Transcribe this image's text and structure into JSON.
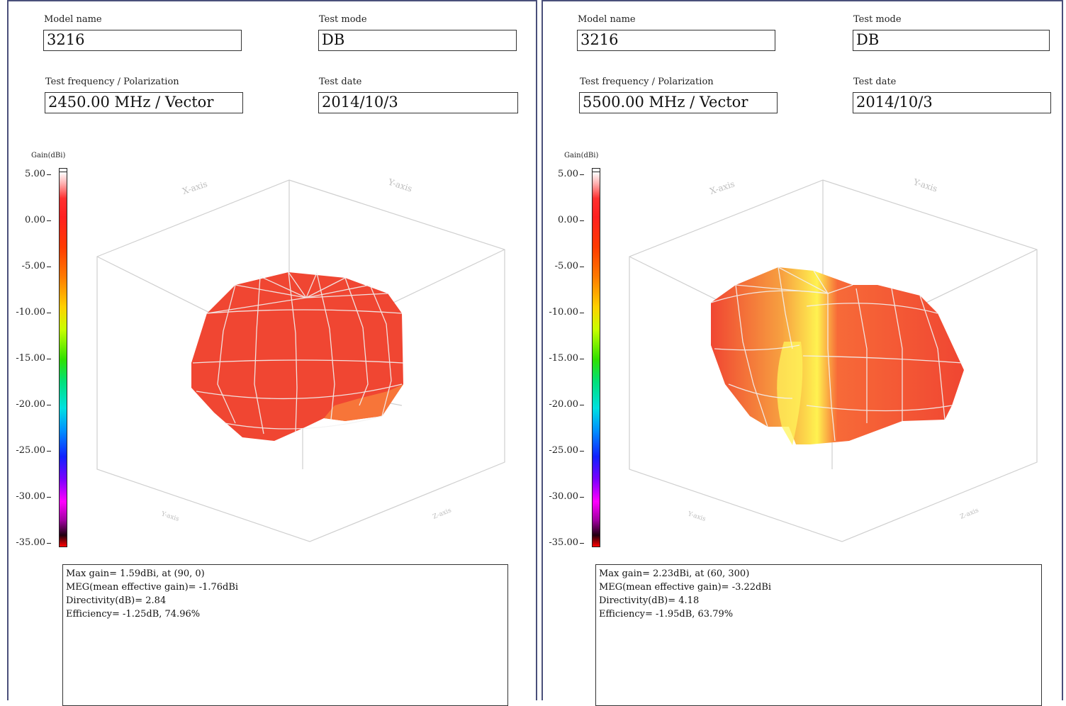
{
  "panels": [
    {
      "model_name_label": "Model name",
      "model_name": "3216",
      "test_mode_label": "Test mode",
      "test_mode": "DB",
      "freq_label": "Test frequency / Polarization",
      "freq": "2450.00 MHz / Vector",
      "date_label": "Test date",
      "date": "2014/10/3",
      "colorbar_title": "Gain(dBi)",
      "colorbar_ticks": [
        "5.00",
        "0.00",
        "-5.00",
        "-10.00",
        "-15.00",
        "-20.00",
        "-25.00",
        "-30.00",
        "-35.00"
      ],
      "axis_labels": {
        "x": "X-axis",
        "y": "Y-axis",
        "z_left": "Y-axis",
        "z_right": "Z-axis"
      },
      "info": [
        "Max gain= 1.59dBi, at (90, 0)",
        "MEG(mean effective gain)= -1.76dBi",
        "Directivity(dB)= 2.84",
        "Efficiency= -1.25dB, 74.96%"
      ]
    },
    {
      "model_name_label": "Model name",
      "model_name": "3216",
      "test_mode_label": "Test mode",
      "test_mode": "DB",
      "freq_label": "Test frequency / Polarization",
      "freq": "5500.00 MHz / Vector",
      "date_label": "Test date",
      "date": "2014/10/3",
      "colorbar_title": "Gain(dBi)",
      "colorbar_ticks": [
        "5.00",
        "0.00",
        "-5.00",
        "-10.00",
        "-15.00",
        "-20.00",
        "-25.00",
        "-30.00",
        "-35.00"
      ],
      "axis_labels": {
        "x": "X-axis",
        "y": "Y-axis",
        "z_left": "Y-axis",
        "z_right": "Z-axis"
      },
      "info": [
        "Max gain= 2.23dBi, at (60, 300)",
        "MEG(mean effective gain)= -3.22dBi",
        "Directivity(dB)= 4.18",
        "Efficiency= -1.95dB, 63.79%"
      ]
    }
  ],
  "colors": {
    "surface_red": "#f04632",
    "surface_yellow": "#ffe640",
    "border": "#4a4f7a"
  }
}
